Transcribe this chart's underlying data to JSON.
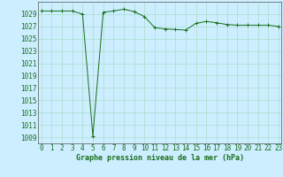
{
  "x": [
    0,
    1,
    2,
    3,
    4,
    5,
    6,
    7,
    8,
    9,
    10,
    11,
    12,
    13,
    14,
    15,
    16,
    17,
    18,
    19,
    20,
    21,
    22,
    23
  ],
  "y": [
    1029.5,
    1029.5,
    1029.5,
    1029.5,
    1029.0,
    1009.2,
    1029.3,
    1029.5,
    1029.8,
    1029.4,
    1028.6,
    1026.8,
    1026.6,
    1026.5,
    1026.4,
    1027.5,
    1027.8,
    1027.6,
    1027.3,
    1027.2,
    1027.2,
    1027.2,
    1027.2,
    1027.0
  ],
  "line_color": "#1a6e1a",
  "bg_color": "#cceeff",
  "grid_color": "#aaddcc",
  "xlabel": "Graphe pression niveau de la mer (hPa)",
  "ylim_min": 1008,
  "ylim_max": 1031,
  "yticks": [
    1009,
    1011,
    1013,
    1015,
    1017,
    1019,
    1021,
    1023,
    1025,
    1027,
    1029
  ],
  "xticks": [
    0,
    1,
    2,
    3,
    4,
    5,
    6,
    7,
    8,
    9,
    10,
    11,
    12,
    13,
    14,
    15,
    16,
    17,
    18,
    19,
    20,
    21,
    22,
    23
  ],
  "title_fontsize": 6.0,
  "tick_fontsize": 5.5
}
